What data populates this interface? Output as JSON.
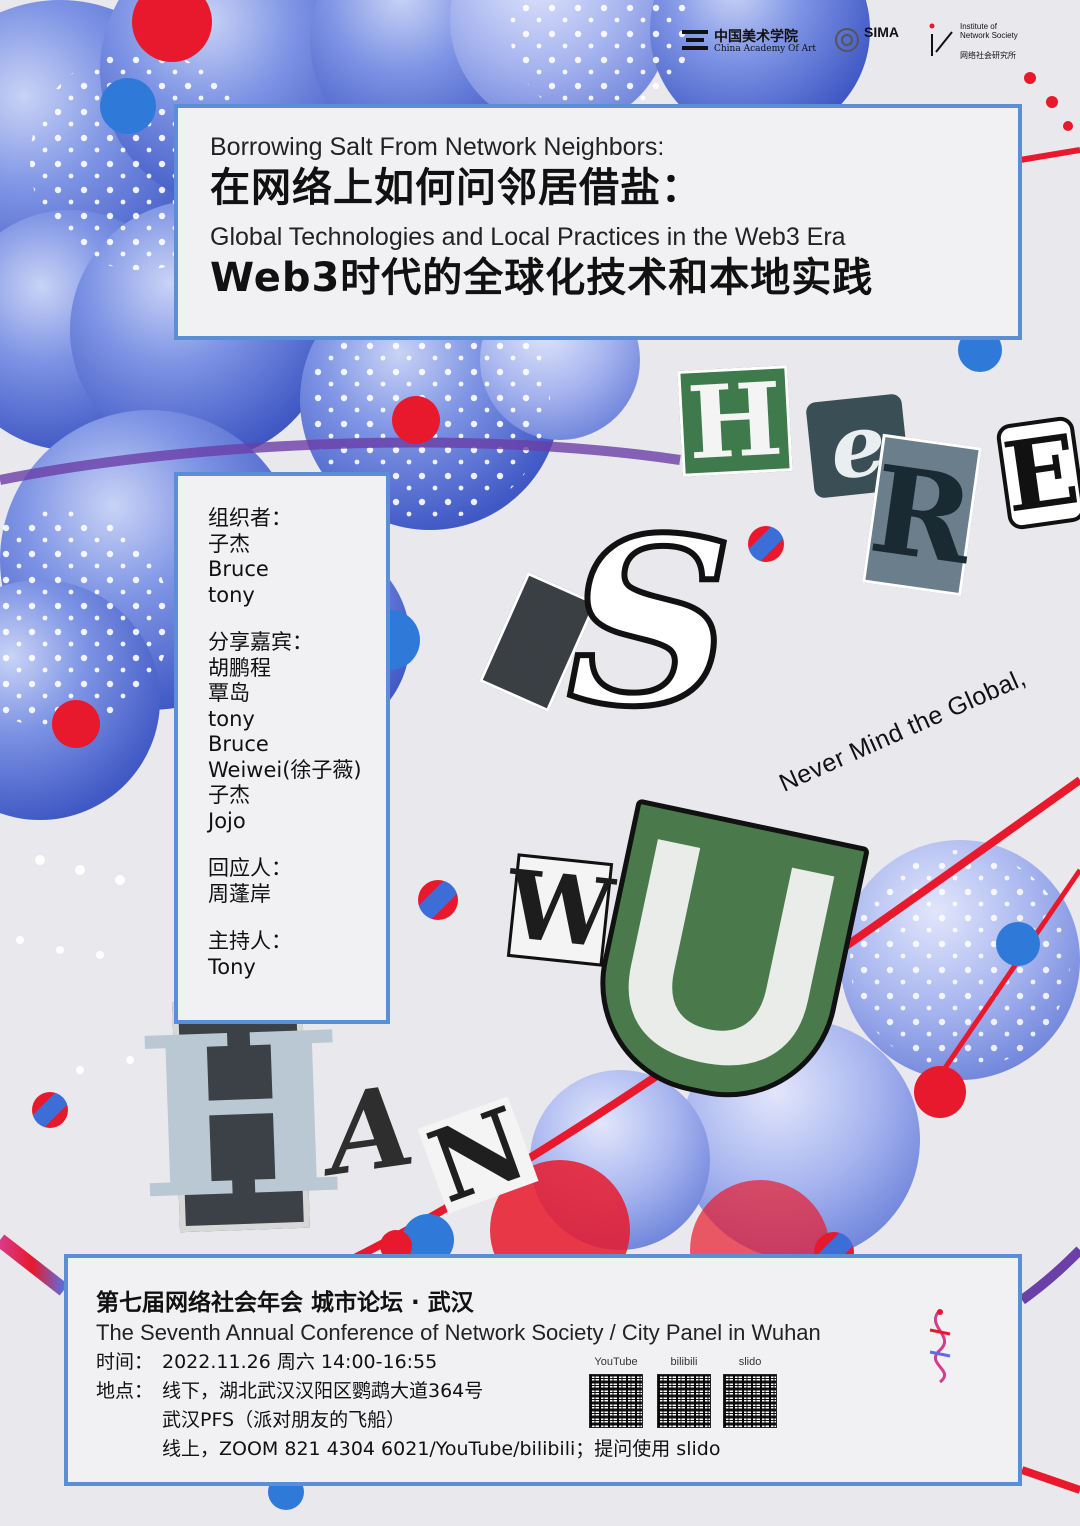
{
  "header": {
    "title_en_1": "Borrowing Salt From Network Neighbors:",
    "title_zh_1": "在网络上如何问邻居借盐：",
    "title_en_2": "Global Technologies and Local Practices in the Web3 Era",
    "title_zh_2": "Web3时代的全球化技术和本地实践"
  },
  "logos": {
    "caa_zh": "中国美术学院",
    "caa_en": "China Academy Of Art",
    "sima": "SIMA",
    "ins_en": "Institute of Network Society",
    "ins_zh": "网络社会研究所"
  },
  "people": {
    "organizers_label": "组织者：",
    "organizers": [
      "子杰",
      "Bruce",
      "tony"
    ],
    "speakers_label": "分享嘉宾：",
    "speakers": [
      "胡鹏程",
      "覃岛",
      "tony",
      "Bruce",
      "Weiwei(徐子薇)",
      "子杰",
      "Jojo"
    ],
    "respondent_label": "回应人：",
    "respondents": [
      "周蓬岸"
    ],
    "host_label": "主持人：",
    "hosts": [
      "Tony"
    ]
  },
  "art": {
    "tagline": "Never Mind the Global,",
    "letters": [
      "H",
      "e",
      "R",
      "E",
      "I",
      "S",
      "W",
      "U",
      "H",
      "A",
      "N"
    ]
  },
  "info": {
    "title_zh": "第七届网络社会年会 城市论坛 · 武汉",
    "title_en": "The Seventh Annual Conference of Network Society / City Panel in Wuhan",
    "time_label": "时间：",
    "time_value": "2022.11.26 周六 14:00-16:55",
    "place_label": "地点：",
    "place_value_1": "线下，湖北武汉汉阳区鹦鹉大道364号",
    "place_value_2": "武汉PFS（派对朋友的飞船）",
    "place_value_3": "线上，ZOOM 821 4304 6021/YouTube/bilibili；提问使用 slido",
    "qr_labels": [
      "YouTube",
      "bilibili",
      "slido"
    ]
  },
  "colors": {
    "panel_border": "#5a8fd6",
    "bubble_blue": "#5b78d8",
    "dot_red": "#e8192c",
    "dot_blue": "#2f7ad8",
    "background": "#e9e8ec"
  }
}
